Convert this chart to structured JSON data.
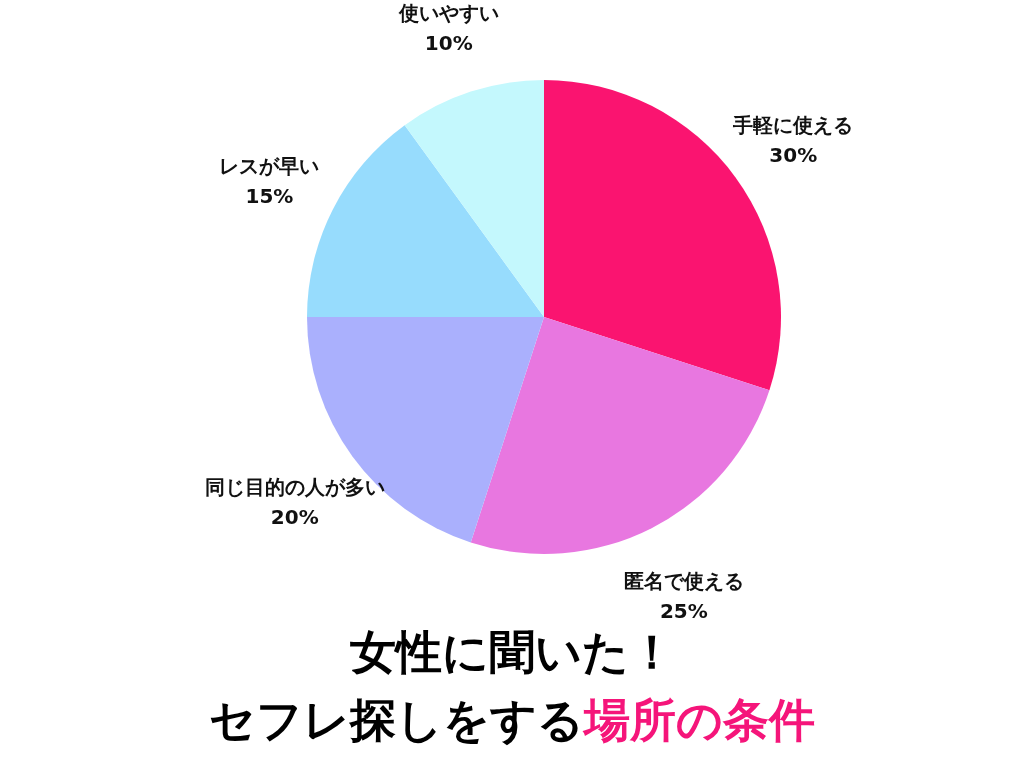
{
  "chart_data": {
    "type": "pie",
    "title": "女性に聞いた！",
    "subtitle": "セフレ探しをする",
    "annotations": [
      "場所の条件"
    ],
    "categories": [
      "手軽に使える",
      "匿名で使える",
      "同じ目的の人が多い",
      "レスが早い",
      "使いやすい"
    ],
    "values": [
      30,
      25,
      20,
      15,
      10
    ],
    "value_labels": [
      "30%",
      "25%",
      "20%",
      "15%",
      "10%"
    ],
    "colors": [
      "#fa1470",
      "#e877e0",
      "#aab0fd",
      "#97dcfd",
      "#c4f8fd"
    ]
  }
}
